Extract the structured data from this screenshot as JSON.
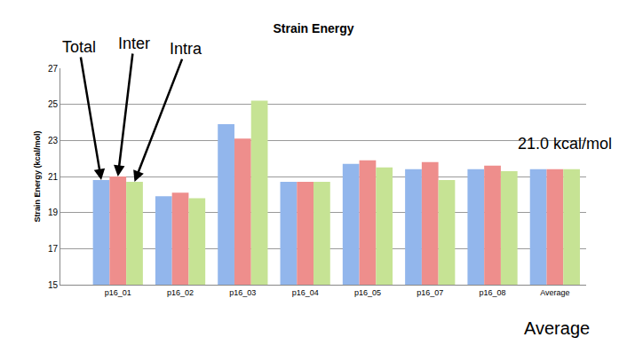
{
  "chart_data": {
    "type": "bar",
    "title": "Strain Energy",
    "y_label": "Strain Energy (kcal/mol)",
    "categories": [
      "p16_01",
      "p16_02",
      "p16_03",
      "p16_04",
      "p16_05",
      "p16_07",
      "p16_08",
      "Average"
    ],
    "series": [
      {
        "name": "Total",
        "color": "#92b6ec",
        "values": [
          20.8,
          19.9,
          23.9,
          20.7,
          21.7,
          21.4,
          21.4,
          21.4
        ]
      },
      {
        "name": "Inter",
        "color": "#ee8e8c",
        "values": [
          21.0,
          20.1,
          23.1,
          20.7,
          21.9,
          21.8,
          21.6,
          21.4
        ]
      },
      {
        "name": "Intra",
        "color": "#c6e394",
        "values": [
          20.7,
          19.8,
          25.2,
          20.7,
          21.5,
          20.8,
          21.3,
          21.4
        ]
      }
    ],
    "ylim": [
      15,
      27
    ],
    "yticks": [
      15,
      17,
      19,
      21,
      23,
      25,
      27
    ],
    "grid": true,
    "annotations": [
      "21.0 kcal/mol",
      "Average"
    ]
  }
}
